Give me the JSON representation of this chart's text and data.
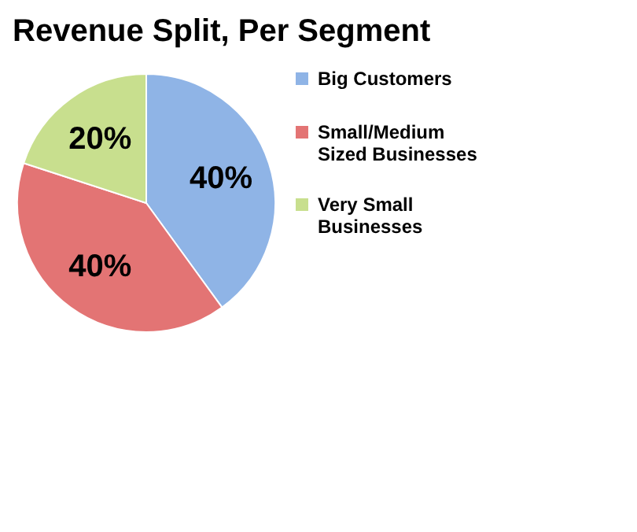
{
  "chart_data": {
    "type": "pie",
    "title": "Revenue Split, Per Segment",
    "categories": [
      "Big Customers",
      "Small/Medium Sized Businesses",
      "Very Small Businesses"
    ],
    "values": [
      40,
      40,
      20
    ],
    "colors": [
      "#8fb4e6",
      "#e37474",
      "#c8df8e"
    ],
    "value_labels": [
      "40%",
      "40%",
      "20%"
    ],
    "legend": "right"
  }
}
